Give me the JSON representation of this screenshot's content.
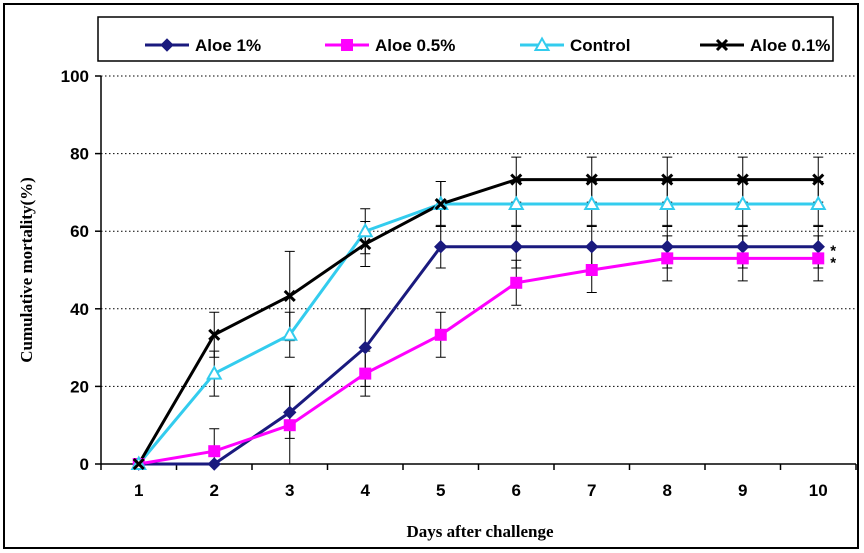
{
  "chart_data": {
    "type": "line",
    "title": "",
    "xlabel": "Days after challenge",
    "ylabel": "Cumulative mortality(%)",
    "x": [
      1,
      2,
      3,
      4,
      5,
      6,
      7,
      8,
      9,
      10
    ],
    "xlim": [
      0.5,
      10.5
    ],
    "ylim": [
      0,
      100
    ],
    "yticks": [
      0,
      20,
      40,
      60,
      80,
      100
    ],
    "grid": "horizontal dotted",
    "legend_position": "top",
    "series": [
      {
        "name": "Aloe 1%",
        "color": "#1a1a7e",
        "marker": "diamond",
        "values": [
          0,
          0,
          13.3,
          30,
          56,
          56,
          56,
          56,
          56,
          56
        ],
        "errors": [
          0,
          0,
          6.7,
          10,
          5.5,
          5.5,
          5.5,
          5.5,
          5.5,
          5.5
        ]
      },
      {
        "name": "Aloe 0.5%",
        "color": "#ff00ff",
        "marker": "square",
        "values": [
          0,
          3.3,
          10,
          23.3,
          33.3,
          46.7,
          50,
          53,
          53,
          53
        ],
        "errors": [
          0,
          5.8,
          10,
          5.8,
          5.8,
          5.8,
          5.8,
          5.8,
          5.8,
          5.8
        ]
      },
      {
        "name": "Control",
        "color": "#33ccee",
        "marker": "triangle",
        "values": [
          0,
          23.3,
          33.3,
          60,
          67,
          67,
          67,
          67,
          67,
          67
        ],
        "errors": [
          0,
          5.8,
          5.8,
          5.8,
          5.8,
          5.8,
          5.8,
          5.8,
          5.8,
          5.8
        ]
      },
      {
        "name": "Aloe 0.1%",
        "color": "#000000",
        "marker": "x",
        "values": [
          0,
          33.3,
          43.3,
          56.7,
          67,
          73.3,
          73.3,
          73.3,
          73.3,
          73.3
        ],
        "errors": [
          0,
          5.8,
          11.5,
          5.8,
          5.8,
          5.8,
          5.8,
          5.8,
          5.8,
          5.8
        ]
      }
    ],
    "annotations": [
      {
        "text": "*",
        "series": "Aloe 1%",
        "x": 10
      },
      {
        "text": "*",
        "series": "Aloe 0.5%",
        "x": 10
      }
    ]
  }
}
